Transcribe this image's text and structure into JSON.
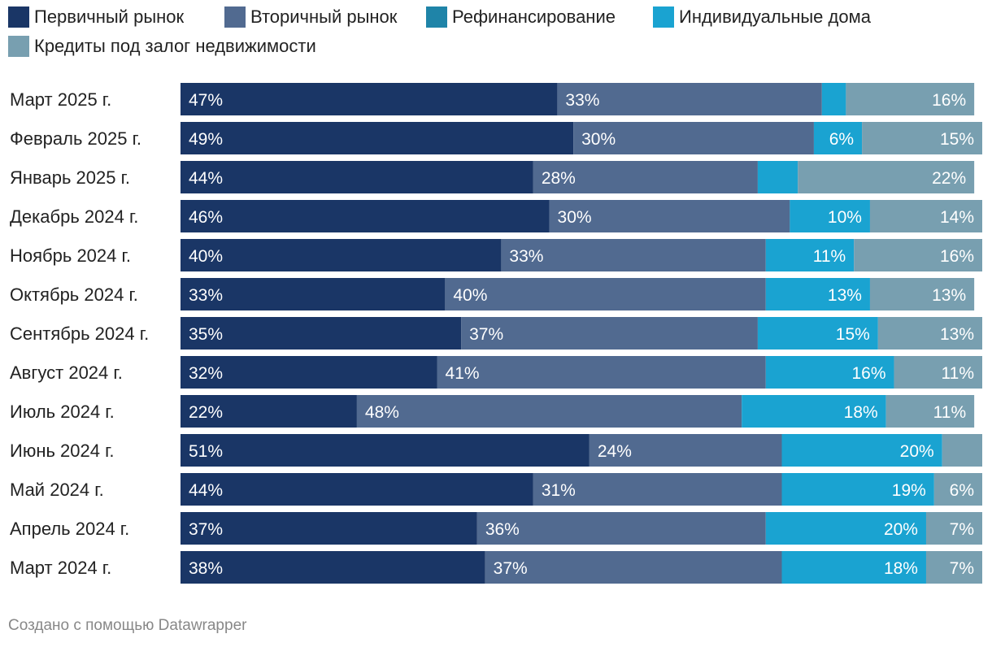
{
  "chart_data": {
    "type": "bar",
    "orientation": "horizontal",
    "stacked": true,
    "title": "",
    "xlabel": "",
    "ylabel": "",
    "xlim": [
      0,
      100
    ],
    "legend_position": "top",
    "categories": [
      "Март 2025 г.",
      "Февраль 2025 г.",
      "Январь 2025 г.",
      "Декабрь 2024 г.",
      "Ноябрь 2024 г.",
      "Октябрь 2024 г.",
      "Сентябрь 2024 г.",
      "Август 2024 г.",
      "Июль 2024 г.",
      "Июнь 2024 г.",
      "Май 2024 г.",
      "Апрель 2024 г.",
      "Март 2024 г."
    ],
    "series": [
      {
        "name": "Первичный рынок",
        "color": "#1a3666",
        "values": [
          47,
          49,
          44,
          46,
          40,
          33,
          35,
          32,
          22,
          51,
          44,
          37,
          38
        ],
        "labels": [
          "47%",
          "49%",
          "44%",
          "46%",
          "40%",
          "33%",
          "35%",
          "32%",
          "22%",
          "51%",
          "44%",
          "37%",
          "38%"
        ]
      },
      {
        "name": "Вторичный рынок",
        "color": "#516a90",
        "values": [
          33,
          30,
          28,
          30,
          33,
          40,
          37,
          41,
          48,
          24,
          31,
          36,
          37
        ],
        "labels": [
          "33%",
          "30%",
          "28%",
          "30%",
          "33%",
          "40%",
          "37%",
          "41%",
          "48%",
          "24%",
          "31%",
          "36%",
          "37%"
        ]
      },
      {
        "name": "Рефинансирование",
        "color": "#1f84a8",
        "values": [
          0,
          0,
          0,
          0,
          0,
          0,
          0,
          0,
          0,
          0,
          0,
          0,
          0
        ],
        "labels": [
          "",
          "",
          "",
          "",
          "",
          "",
          "",
          "",
          "",
          "",
          "",
          "",
          ""
        ]
      },
      {
        "name": "Индивидуальные дома",
        "color": "#1aa3d1",
        "values": [
          3,
          6,
          5,
          10,
          11,
          13,
          15,
          16,
          18,
          20,
          19,
          20,
          18
        ],
        "labels": [
          "",
          "6%",
          "",
          "10%",
          "11%",
          "13%",
          "15%",
          "16%",
          "18%",
          "20%",
          "19%",
          "20%",
          "18%"
        ]
      },
      {
        "name": "Кредиты под залог недвижимости",
        "color": "#789fb0",
        "values": [
          16,
          15,
          22,
          14,
          16,
          13,
          13,
          11,
          11,
          5,
          6,
          7,
          7
        ],
        "labels": [
          "16%",
          "15%",
          "22%",
          "14%",
          "16%",
          "13%",
          "13%",
          "11%",
          "11%",
          "",
          "6%",
          "7%",
          "7%"
        ]
      }
    ]
  },
  "footer": {
    "credit": "Создано с помощью Datawrapper"
  }
}
